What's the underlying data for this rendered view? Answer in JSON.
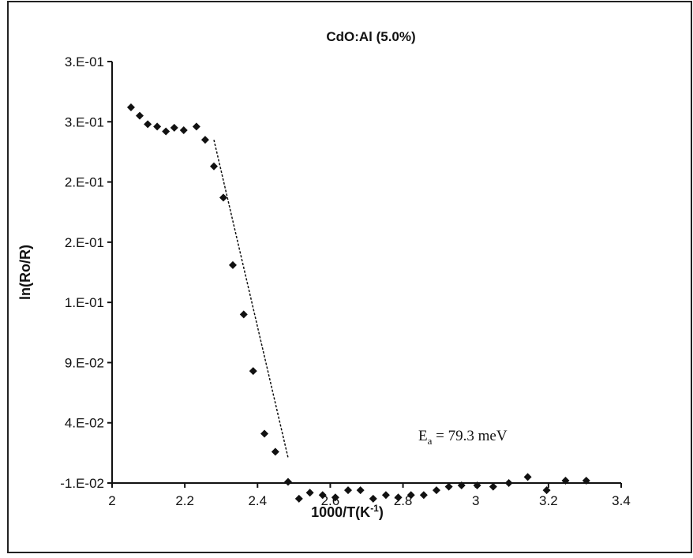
{
  "chart_data": {
    "type": "scatter",
    "title": "CdO:Al  (5.0%)",
    "x_label": {
      "text": "1000/T(K",
      "sup": "-1",
      "end": ")"
    },
    "y_label": "ln(Ro/R)",
    "annotation": {
      "text": "E",
      "sub": "a",
      "rest": " = 79.3 meV"
    },
    "xlim": [
      2,
      3.4
    ],
    "xticks": [
      2,
      2.2,
      2.4,
      2.6,
      2.8,
      3,
      3.2,
      3.4
    ],
    "ylim": [
      -0.01,
      0.34
    ],
    "yticks": [
      {
        "value": -0.01,
        "label": "-1.E-02"
      },
      {
        "value": 0.04,
        "label": "4.E-02"
      },
      {
        "value": 0.09,
        "label": "9.E-02"
      },
      {
        "value": 0.14,
        "label": "1.E-01"
      },
      {
        "value": 0.19,
        "label": "2.E-01"
      },
      {
        "value": 0.24,
        "label": "2.E-01"
      },
      {
        "value": 0.29,
        "label": "3.E-01"
      },
      {
        "value": 0.34,
        "label": "3.E-01"
      }
    ],
    "color": "#111111",
    "x": [
      2.052,
      2.076,
      2.098,
      2.124,
      2.148,
      2.171,
      2.197,
      2.232,
      2.256,
      2.28,
      2.306,
      2.332,
      2.362,
      2.388,
      2.419,
      2.449,
      2.484,
      2.514,
      2.544,
      2.579,
      2.614,
      2.649,
      2.683,
      2.718,
      2.753,
      2.787,
      2.822,
      2.857,
      2.892,
      2.926,
      2.961,
      3.004,
      3.048,
      3.091,
      3.143,
      3.195,
      3.247,
      3.304
    ],
    "values": [
      0.302,
      0.295,
      0.288,
      0.286,
      0.282,
      0.285,
      0.283,
      0.286,
      0.275,
      0.253,
      0.227,
      0.171,
      0.13,
      0.083,
      0.031,
      0.016,
      -0.009,
      -0.023,
      -0.018,
      -0.02,
      -0.022,
      -0.016,
      -0.016,
      -0.023,
      -0.02,
      -0.022,
      -0.02,
      -0.02,
      -0.016,
      -0.013,
      -0.012,
      -0.012,
      -0.013,
      -0.01,
      -0.005,
      -0.016,
      -0.008,
      -0.008
    ],
    "fit": {
      "x": [
        2.28,
        2.484
      ],
      "values": [
        0.275,
        0.011
      ]
    }
  }
}
